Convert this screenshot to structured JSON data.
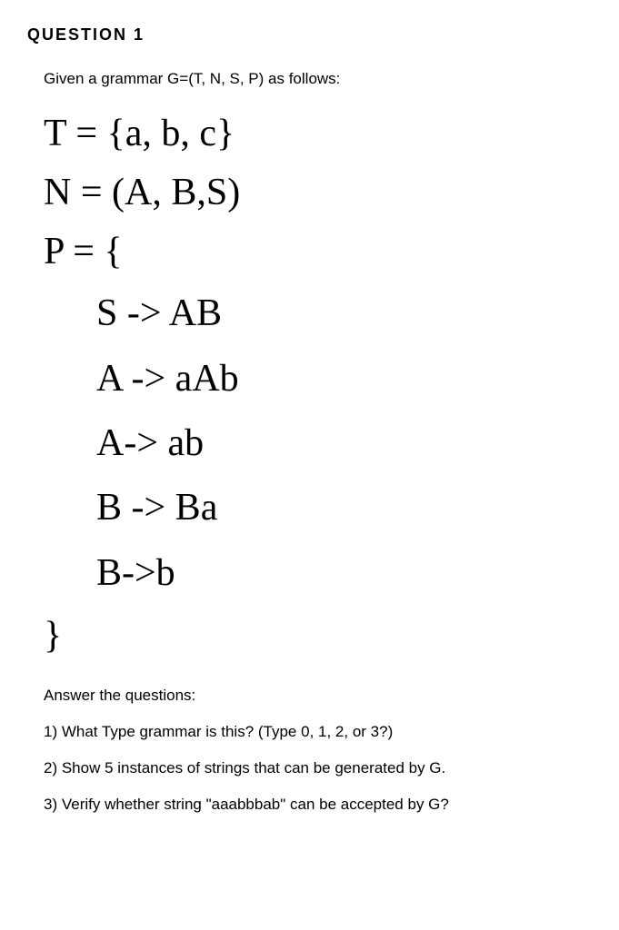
{
  "header": "QUESTION 1",
  "intro": "Given a grammar G=(T, N, S, P) as follows:",
  "grammar": {
    "T": "T = {a, b, c}",
    "N": "N = (A, B,S)",
    "P_open": "P = {",
    "productions": [
      "S -> AB",
      "A -> aAb",
      "A-> ab",
      "B -> Ba",
      "B->b"
    ],
    "P_close": "}"
  },
  "questions": {
    "label": "Answer the questions:",
    "items": [
      "1) What Type grammar is this?   (Type 0, 1, 2, or 3?)",
      "2) Show 5 instances of strings that can be generated by G.",
      "3) Verify whether string \"aaabbbab\" can be accepted by G?"
    ]
  }
}
